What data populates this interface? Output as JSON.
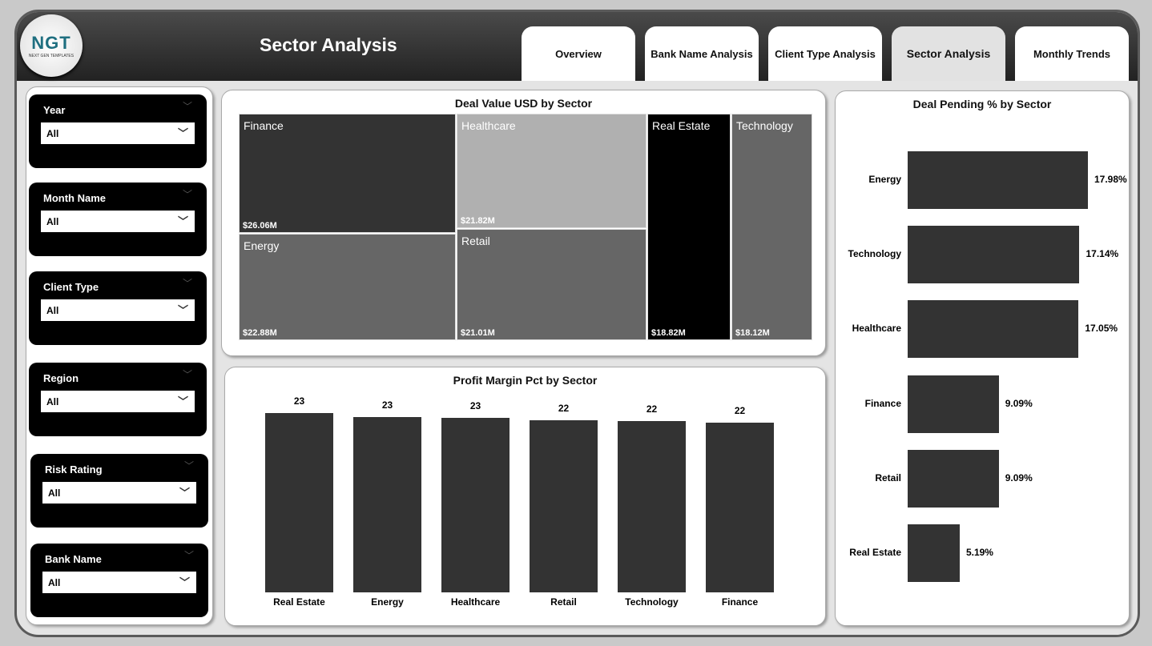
{
  "header": {
    "title": "Sector Analysis",
    "logo_text": "NGT",
    "logo_sub": "NEXT GEN TEMPLATES"
  },
  "tabs": [
    {
      "label": "Overview"
    },
    {
      "label": "Bank Name Analysis"
    },
    {
      "label": "Client Type Analysis"
    },
    {
      "label": "Sector Analysis",
      "active": true
    },
    {
      "label": "Monthly Trends"
    }
  ],
  "slicers": [
    {
      "label": "Year",
      "value": "All"
    },
    {
      "label": "Month Name",
      "value": "All"
    },
    {
      "label": "Client Type",
      "value": "All"
    },
    {
      "label": "Region",
      "value": "All"
    },
    {
      "label": "Risk Rating",
      "value": "All"
    },
    {
      "label": "Bank Name",
      "value": "All"
    }
  ],
  "chart_data": [
    {
      "type": "treemap",
      "title": "Deal Value USD by Sector",
      "categories": [
        "Finance",
        "Energy",
        "Healthcare",
        "Retail",
        "Real Estate",
        "Technology"
      ],
      "values": [
        26.06,
        22.88,
        21.82,
        21.01,
        18.82,
        18.12
      ],
      "labels": [
        "$26.06M",
        "$22.88M",
        "$21.82M",
        "$21.01M",
        "$18.82M",
        "$18.12M"
      ],
      "colors": [
        "#333333",
        "#666666",
        "#b0b0b0",
        "#666666",
        "#000000",
        "#666666"
      ]
    },
    {
      "type": "bar",
      "title": "Profit Margin Pct by Sector",
      "categories": [
        "Real Estate",
        "Energy",
        "Healthcare",
        "Retail",
        "Technology",
        "Finance"
      ],
      "values": [
        23.1,
        22.6,
        22.5,
        22.2,
        22.1,
        21.9
      ],
      "labels": [
        "23",
        "23",
        "23",
        "22",
        "22",
        "22"
      ],
      "ylim": [
        0,
        24
      ],
      "color": "#333333"
    },
    {
      "type": "bar",
      "orientation": "horizontal",
      "title": "Deal Pending % by Sector",
      "categories": [
        "Energy",
        "Technology",
        "Healthcare",
        "Finance",
        "Retail",
        "Real Estate"
      ],
      "values": [
        17.98,
        17.14,
        17.05,
        9.09,
        9.09,
        5.19
      ],
      "labels": [
        "17.98%",
        "17.14%",
        "17.05%",
        "9.09%",
        "9.09%",
        "5.19%"
      ],
      "color": "#333333"
    }
  ]
}
